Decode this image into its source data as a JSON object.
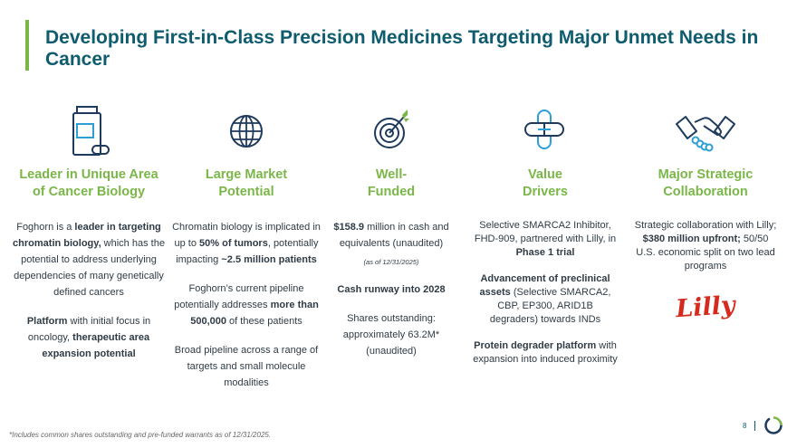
{
  "title": "Developing First-in-Class Precision Medicines Targeting Major Unmet Needs in Cancer",
  "columns": [
    {
      "icon": "pill-bottle-icon",
      "heading": "Leader in Unique Area\nof Cancer Biology",
      "p1": [
        {
          "t": "Foghorn is a ",
          "b": false
        },
        {
          "t": "leader in targeting chromatin biology,",
          "b": true
        },
        {
          "t": " which has the potential to address underlying dependencies of many genetically defined cancers",
          "b": false
        }
      ],
      "p2": [
        {
          "t": "Platform",
          "b": true
        },
        {
          "t": " with initial focus in oncology, ",
          "b": false
        },
        {
          "t": "therapeutic area expansion potential",
          "b": true
        }
      ]
    },
    {
      "icon": "globe-icon",
      "heading": "Large Market\nPotential",
      "p1": [
        {
          "t": "Chromatin biology is implicated in up to ",
          "b": false
        },
        {
          "t": "50% of tumors",
          "b": true
        },
        {
          "t": ", potentially impacting ",
          "b": false
        },
        {
          "t": "~2.5 million patients",
          "b": true
        }
      ],
      "p2": [
        {
          "t": "Foghorn’s current pipeline potentially addresses ",
          "b": false
        },
        {
          "t": "more than 500,000",
          "b": true
        },
        {
          "t": " of these patients",
          "b": false
        }
      ],
      "p3": [
        {
          "t": "Broad pipeline across a range of targets and small molecule modalities",
          "b": false
        }
      ]
    },
    {
      "icon": "target-icon",
      "heading": "Well-\nFunded",
      "p1": [
        {
          "t": "$158.9",
          "b": true
        },
        {
          "t": " million in cash and equivalents (unaudited)",
          "b": false
        }
      ],
      "note": "(as of 12/31/2025)",
      "p2": [
        {
          "t": "Cash runway into 2028",
          "b": true
        }
      ],
      "p3": [
        {
          "t": "Shares outstanding: approximately 63.2M* (unaudited)",
          "b": false
        }
      ]
    },
    {
      "icon": "pill-capsule-icon",
      "heading": "Value\nDrivers",
      "p1": [
        {
          "t": "Selective SMARCA2 Inhibitor, FHD-909, partnered with Lilly, in ",
          "b": false
        },
        {
          "t": "Phase 1 trial",
          "b": true
        }
      ],
      "p2": [
        {
          "t": "Advancement of preclinical assets",
          "b": true
        },
        {
          "t": " (Selective SMARCA2, CBP, EP300, ARID1B degraders) towards INDs",
          "b": false
        }
      ],
      "p3": [
        {
          "t": "Protein degrader platform",
          "b": true
        },
        {
          "t": " with expansion into induced proximity",
          "b": false
        }
      ]
    },
    {
      "icon": "handshake-icon",
      "heading": "Major Strategic\nCollaboration",
      "p1": [
        {
          "t": "Strategic collaboration with Lilly; ",
          "b": false
        },
        {
          "t": "$380 million upfront;",
          "b": true
        },
        {
          "t": " 50/50 U.S. economic split on two lead programs",
          "b": false
        }
      ],
      "logo_text": "Lilly"
    }
  ],
  "footnote": "*Includes common shares outstanding and pre-funded warrants as of 12/31/2025.",
  "page_number": "8",
  "colors": {
    "title": "#0e5c6e",
    "accent_green": "#7ab648",
    "icon_navy": "#1e3a5c",
    "icon_blue": "#2e9fd6",
    "lilly_red": "#d52b1e"
  }
}
